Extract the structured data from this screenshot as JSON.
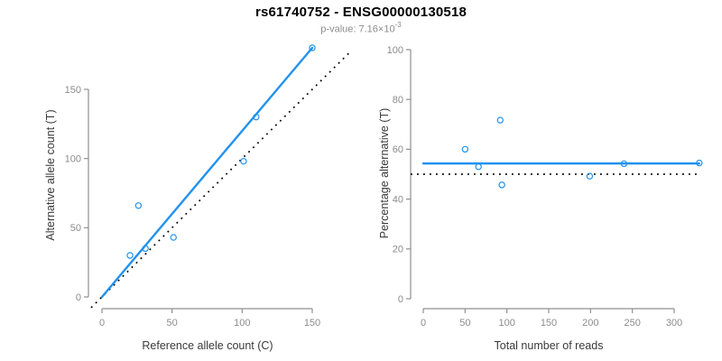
{
  "header": {
    "title": "rs61740752 - ENSG00000130518",
    "pvalue_label": "p-value: 7.16×10",
    "pvalue_exponent": "-3"
  },
  "colors": {
    "accent_blue": "#2292ee",
    "axis_gray": "#909090",
    "tick_label_gray": "#8c8c8c",
    "axis_title_dark": "#3a3a3a",
    "dotted_line": "#000000",
    "background": "#ffffff"
  },
  "chart_data": [
    {
      "type": "scatter",
      "name": "allele-counts-plot",
      "xlabel": "Reference allele count (C)",
      "ylabel": "Alternative allele count (T)",
      "xticks": [
        0,
        50,
        100,
        150
      ],
      "yticks": [
        0,
        50,
        100,
        150
      ],
      "xlim": [
        0,
        178
      ],
      "ylim": [
        0,
        182
      ],
      "grid": false,
      "points": [
        [
          20,
          30
        ],
        [
          26,
          66
        ],
        [
          31,
          35
        ],
        [
          51,
          43
        ],
        [
          101,
          98
        ],
        [
          110,
          130
        ],
        [
          150,
          180
        ]
      ],
      "fit_line": {
        "x1": 0,
        "y1": 0,
        "x2": 150,
        "y2": 180
      },
      "identity_line": {
        "slope": 1,
        "intercept": 0,
        "style": "dotted"
      }
    },
    {
      "type": "scatter",
      "name": "percentage-alternative-plot",
      "xlabel": "Total number of reads",
      "ylabel": "Percentage alternative (T)",
      "xticks": [
        0,
        50,
        100,
        150,
        200,
        250,
        300
      ],
      "yticks": [
        0,
        20,
        40,
        60,
        80,
        100
      ],
      "xlim": [
        0,
        343
      ],
      "ylim": [
        0,
        100
      ],
      "grid": false,
      "points": [
        [
          50,
          60
        ],
        [
          66,
          53
        ],
        [
          92,
          71.7
        ],
        [
          94,
          45.7
        ],
        [
          199,
          49.2
        ],
        [
          240,
          54.2
        ],
        [
          330,
          54.5
        ]
      ],
      "fit_line": {
        "y": 54.3,
        "x1": 0,
        "x2": 330
      },
      "reference_line": {
        "y": 50,
        "style": "dotted"
      }
    }
  ]
}
